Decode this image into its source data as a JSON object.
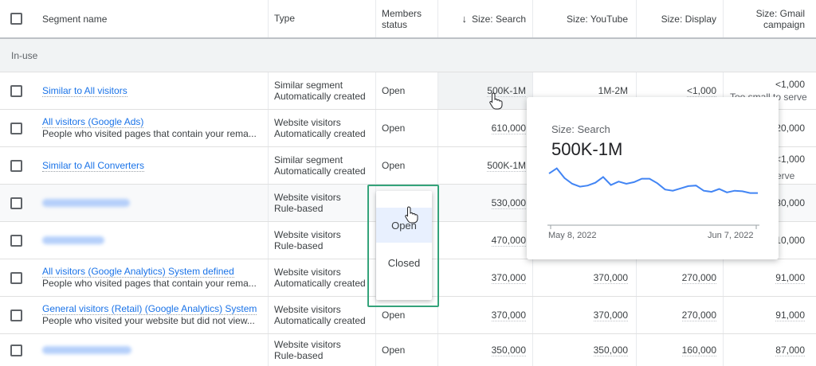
{
  "header": {
    "segment_name": "Segment name",
    "type": "Type",
    "membership_status_line1": "Members",
    "membership_status_line2": "status",
    "size_search": "Size: Search",
    "size_youtube": "Size: YouTube",
    "size_display": "Size: Display",
    "size_gmail_line1": "Size: Gmail",
    "size_gmail_line2": "campaign",
    "sort_icon": "arrow-down-icon"
  },
  "group": {
    "label": "In-use"
  },
  "rows": [
    {
      "name": "Similar to All visitors",
      "desc": "",
      "type1": "Similar segment",
      "type2": "Automatically created",
      "status": "Open",
      "search": "500K-1M",
      "youtube": "1M-2M",
      "display": "<1,000",
      "gmail": "<1,000"
    },
    {
      "name": "All visitors (Google Ads)",
      "desc": "People who visited pages that contain your rema...",
      "type1": "Website visitors",
      "type2": "Automatically created",
      "status": "Open",
      "search": "610,000",
      "youtube": "",
      "display": "",
      "gmail": "20,000"
    },
    {
      "name": "Similar to All Converters",
      "desc": "",
      "type1": "Similar segment",
      "type2": "Automatically created",
      "status": "Open",
      "search": "500K-1M",
      "youtube": "",
      "display": "",
      "gmail": "<1,000"
    },
    {
      "name": "",
      "desc": "",
      "type1": "Website visitors",
      "type2": "Rule-based",
      "status": "",
      "search": "530,000",
      "youtube": "",
      "display": "",
      "gmail": "30,000"
    },
    {
      "name": "",
      "desc": "",
      "type1": "Website visitors",
      "type2": "Rule-based",
      "status": "",
      "search": "470,000",
      "youtube": "",
      "display": "",
      "gmail": "10,000"
    },
    {
      "name": "All visitors (Google Analytics) System defined",
      "desc": "People who visited pages that contain your rema...",
      "type1": "Website visitors",
      "type2": "Automatically created",
      "status": "",
      "search": "370,000",
      "youtube": "370,000",
      "display": "270,000",
      "gmail": "91,000"
    },
    {
      "name": "General visitors (Retail) (Google Analytics) System",
      "desc": "People who visited your website but did not view...",
      "type1": "Website visitors",
      "type2": "Automatically created",
      "status": "Open",
      "search": "370,000",
      "youtube": "370,000",
      "display": "270,000",
      "gmail": "91,000"
    },
    {
      "name": "",
      "desc": "",
      "type1": "Website visitors",
      "type2": "Rule-based",
      "status": "Open",
      "search": "350,000",
      "youtube": "350,000",
      "display": "160,000",
      "gmail": "87,000"
    }
  ],
  "gmail_overflow": {
    "too_small_1": "Too small to serve",
    "too_small_3": "o serve"
  },
  "dropdown": {
    "options": [
      "Open",
      "Closed"
    ],
    "highlighted": "Open"
  },
  "popup": {
    "title": "Size: Search",
    "value": "500K-1M",
    "start_date": "May 8, 2022",
    "end_date": "Jun 7, 2022",
    "line_color": "#4285f4",
    "series": [
      0.86,
      0.95,
      0.78,
      0.68,
      0.63,
      0.65,
      0.7,
      0.8,
      0.66,
      0.72,
      0.68,
      0.71,
      0.77,
      0.77,
      0.69,
      0.58,
      0.56,
      0.6,
      0.64,
      0.65,
      0.56,
      0.54,
      0.59,
      0.53,
      0.56,
      0.55,
      0.52,
      0.52
    ]
  },
  "colors": {
    "link": "#1a73e8",
    "dropdown_outline": "#34a37a",
    "selected_option": "#e8f0fe"
  }
}
